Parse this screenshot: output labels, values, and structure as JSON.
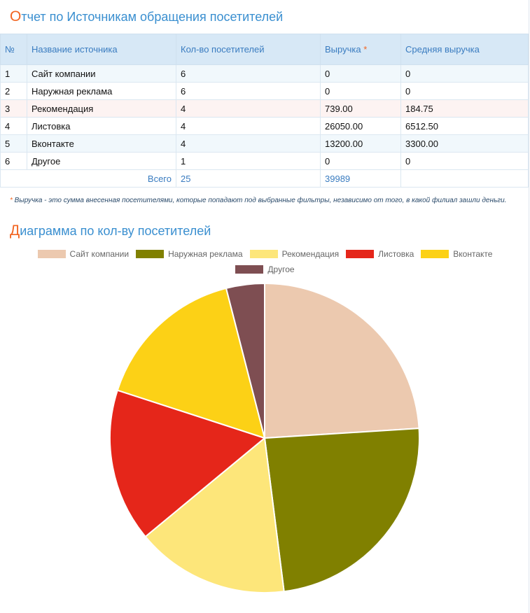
{
  "report": {
    "title_first": "О",
    "title_rest": "тчет по Источникам обращения посетителей",
    "columns": [
      "№",
      "Название источника",
      "Кол-во посетителей",
      "Выручка",
      "Средняя выручка"
    ],
    "revenue_asterisk": "*",
    "rows": [
      {
        "n": "1",
        "name": "Сайт компании",
        "visitors": "6",
        "revenue": "0",
        "avg": "0"
      },
      {
        "n": "2",
        "name": "Наружная реклама",
        "visitors": "6",
        "revenue": "0",
        "avg": "0"
      },
      {
        "n": "3",
        "name": "Рекомендация",
        "visitors": "4",
        "revenue": "739.00",
        "avg": "184.75"
      },
      {
        "n": "4",
        "name": "Листовка",
        "visitors": "4",
        "revenue": "26050.00",
        "avg": "6512.50"
      },
      {
        "n": "5",
        "name": "Вконтакте",
        "visitors": "4",
        "revenue": "13200.00",
        "avg": "3300.00"
      },
      {
        "n": "6",
        "name": "Другое",
        "visitors": "1",
        "revenue": "0",
        "avg": "0"
      }
    ],
    "total": {
      "label": "Всего",
      "visitors": "25",
      "revenue": "39989"
    },
    "footnote_asterisk": "*",
    "footnote": " Выручка - это сумма внесенная посетителями, которые попадают под выбранные фильтры, независимо от того, в какой филиал зашли деньги."
  },
  "diagram": {
    "title_first": "Д",
    "title_rest": "иаграмма по кол-ву посетителей"
  },
  "chart_data": {
    "type": "pie",
    "title": "Диаграмма по кол-ву посетителей",
    "categories": [
      "Сайт компании",
      "Наружная реклама",
      "Рекомендация",
      "Листовка",
      "Вконтакте",
      "Другое"
    ],
    "values": [
      6,
      6,
      4,
      4,
      4,
      1
    ],
    "colors": [
      "#ecc9af",
      "#808000",
      "#fde67a",
      "#e5261a",
      "#fcd116",
      "#7e4e52"
    ],
    "legend": "top"
  }
}
